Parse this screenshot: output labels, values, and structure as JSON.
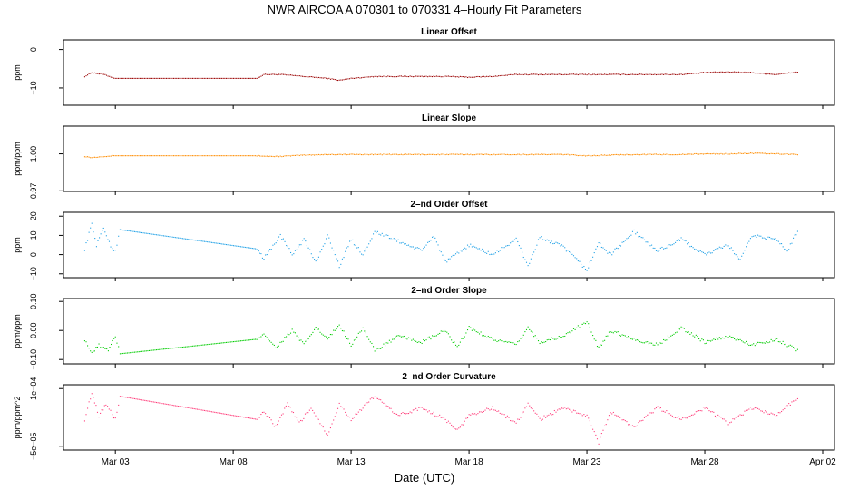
{
  "title": "NWR   AIRCOA A   070301 to 070331   4–Hourly Fit Parameters",
  "x_axis": {
    "label": "Date (UTC)",
    "ticks": [
      "Mar 03",
      "Mar 08",
      "Mar 13",
      "Mar 18",
      "Mar 23",
      "Mar 28",
      "Apr 02"
    ],
    "tick_days": [
      3,
      8,
      13,
      18,
      23,
      28,
      33
    ],
    "range_days": [
      0.8,
      33.5
    ]
  },
  "chart_data": [
    {
      "type": "scatter",
      "title": "Linear Offset",
      "ylabel": "ppm",
      "yticks": [
        "0",
        "−10"
      ],
      "ytick_values": [
        0,
        -10
      ],
      "ylim": [
        -14.5,
        2.5
      ],
      "color": "#990000",
      "series": [
        {
          "x_days": [
            1.7,
            2.0,
            2.5,
            3.0,
            9.0,
            9.3,
            10.0,
            11.0,
            12.0,
            12.5,
            13.0,
            14.0,
            15.0,
            16.0,
            17.0,
            18.0,
            19.0,
            20.0,
            21.0,
            22.0,
            23.0,
            24.0,
            25.0,
            26.0,
            27.0,
            28.0,
            29.0,
            30.0,
            31.0,
            32.0
          ],
          "values": [
            -7.0,
            -6.0,
            -6.5,
            -7.5,
            -7.5,
            -6.5,
            -6.5,
            -7.0,
            -7.5,
            -8.0,
            -7.5,
            -7.0,
            -7.0,
            -7.0,
            -7.0,
            -7.2,
            -7.0,
            -6.5,
            -6.5,
            -6.5,
            -6.5,
            -6.5,
            -6.5,
            -6.5,
            -6.5,
            -6.0,
            -5.8,
            -6.0,
            -6.5,
            -5.8
          ]
        }
      ]
    },
    {
      "type": "scatter",
      "title": "Linear Slope",
      "ylabel": "ppm/ppm",
      "yticks": [
        "0.97",
        "1.00"
      ],
      "ytick_values": [
        0.97,
        1.0
      ],
      "ylim": [
        0.9695,
        1.0225
      ],
      "color": "#ff8c00",
      "series": [
        {
          "x_days": [
            1.7,
            2.0,
            2.5,
            3.0,
            9.0,
            9.5,
            10.0,
            11.0,
            12.0,
            13.0,
            14.0,
            15.0,
            16.0,
            17.0,
            18.0,
            19.0,
            20.0,
            21.0,
            22.0,
            23.0,
            24.0,
            25.0,
            26.0,
            27.0,
            28.0,
            29.0,
            30.0,
            31.0,
            32.0
          ],
          "values": [
            0.998,
            0.997,
            0.998,
            0.9985,
            0.9985,
            0.998,
            0.998,
            0.999,
            0.9995,
            0.9995,
            0.9995,
            0.9995,
            0.9995,
            0.9995,
            0.9995,
            0.9995,
            0.9995,
            0.9995,
            0.9995,
            0.9985,
            0.999,
            0.9995,
            0.9995,
            0.9995,
            1.0,
            1.0,
            1.0005,
            1.0,
            0.9995
          ]
        }
      ]
    },
    {
      "type": "scatter",
      "title": "2–nd Order Offset",
      "ylabel": "ppm",
      "yticks": [
        "−10",
        "0",
        "10",
        "20"
      ],
      "ytick_values": [
        -10,
        0,
        10,
        20
      ],
      "ylim": [
        -12,
        22
      ],
      "color": "#1ea0e6",
      "series": [
        {
          "x_days": [
            1.7,
            2.0,
            2.2,
            2.5,
            2.8,
            3.0,
            3.2,
            9.0,
            9.3,
            10.0,
            10.5,
            11.0,
            11.5,
            12.0,
            12.5,
            13.0,
            13.5,
            14.0,
            15.0,
            16.0,
            16.5,
            17.0,
            18.0,
            19.0,
            20.0,
            20.5,
            21.0,
            22.0,
            23.0,
            23.5,
            24.0,
            25.0,
            26.0,
            27.0,
            28.0,
            29.0,
            29.5,
            30.0,
            31.0,
            31.5,
            32.0
          ],
          "values": [
            3.0,
            16.0,
            5.0,
            14.0,
            4.0,
            2.0,
            13.0,
            3.0,
            -2.0,
            10.0,
            0.0,
            8.0,
            -4.0,
            10.0,
            -6.0,
            8.0,
            0.0,
            12.0,
            7.0,
            2.0,
            10.0,
            -4.0,
            5.0,
            0.0,
            8.0,
            -6.0,
            9.0,
            4.0,
            -8.0,
            6.0,
            0.0,
            12.0,
            2.0,
            8.0,
            0.0,
            5.0,
            -3.0,
            10.0,
            8.0,
            2.0,
            14.0
          ]
        }
      ]
    },
    {
      "type": "scatter",
      "title": "2–nd Order Slope",
      "ylabel": "ppm/ppm",
      "yticks": [
        "−0.10",
        "0.00",
        "0.10"
      ],
      "ytick_values": [
        -0.1,
        0.0,
        0.1
      ],
      "ylim": [
        -0.115,
        0.11
      ],
      "color": "#00cc00",
      "series": [
        {
          "x_days": [
            1.7,
            2.0,
            2.3,
            2.7,
            3.0,
            3.2,
            9.0,
            9.3,
            9.8,
            10.5,
            11.0,
            11.5,
            12.0,
            12.5,
            13.0,
            13.5,
            14.0,
            15.0,
            16.0,
            17.0,
            17.5,
            18.0,
            19.0,
            20.0,
            20.5,
            21.0,
            22.0,
            23.0,
            23.5,
            24.0,
            25.0,
            26.0,
            27.0,
            28.0,
            29.0,
            30.0,
            31.0,
            32.0
          ],
          "values": [
            -0.03,
            -0.08,
            -0.05,
            -0.07,
            -0.02,
            -0.08,
            -0.03,
            -0.01,
            -0.06,
            0.0,
            -0.05,
            0.01,
            -0.03,
            0.02,
            -0.05,
            0.01,
            -0.07,
            -0.02,
            -0.04,
            0.0,
            -0.06,
            0.01,
            -0.03,
            -0.05,
            0.01,
            -0.04,
            -0.02,
            0.03,
            -0.06,
            0.0,
            -0.03,
            -0.05,
            0.01,
            -0.04,
            -0.02,
            -0.05,
            -0.03,
            -0.07
          ]
        }
      ]
    },
    {
      "type": "scatter",
      "title": "2–nd Order Curvature",
      "ylabel": "ppm/ppm^2",
      "yticks": [
        "−5e−05",
        "1e−04"
      ],
      "ytick_values": [
        -5e-05,
        0.0001
      ],
      "ylim": [
        -6e-05,
        0.00011
      ],
      "color": "#ff3c7a",
      "series": [
        {
          "x_days": [
            1.7,
            2.0,
            2.3,
            2.6,
            3.0,
            3.2,
            9.0,
            9.3,
            9.8,
            10.3,
            10.8,
            11.3,
            12.0,
            12.5,
            13.0,
            13.5,
            14.0,
            15.0,
            16.0,
            17.0,
            17.5,
            18.0,
            19.0,
            20.0,
            20.5,
            21.0,
            22.0,
            23.0,
            23.5,
            24.0,
            25.0,
            26.0,
            27.0,
            28.0,
            29.0,
            30.0,
            31.0,
            32.0
          ],
          "values": [
            2e-05,
            9e-05,
            3e-05,
            6e-05,
            2e-05,
            8e-05,
            2e-05,
            4e-05,
            0.0,
            6e-05,
            1e-05,
            5e-05,
            -2e-05,
            6e-05,
            2e-05,
            5e-05,
            8e-05,
            3e-05,
            5e-05,
            2e-05,
            -1e-05,
            3e-05,
            5e-05,
            1e-05,
            6e-05,
            2e-05,
            5e-05,
            3e-05,
            -4e-05,
            4e-05,
            0.0,
            5e-05,
            2e-05,
            5e-05,
            1e-05,
            5e-05,
            3e-05,
            8e-05
          ]
        }
      ]
    }
  ]
}
